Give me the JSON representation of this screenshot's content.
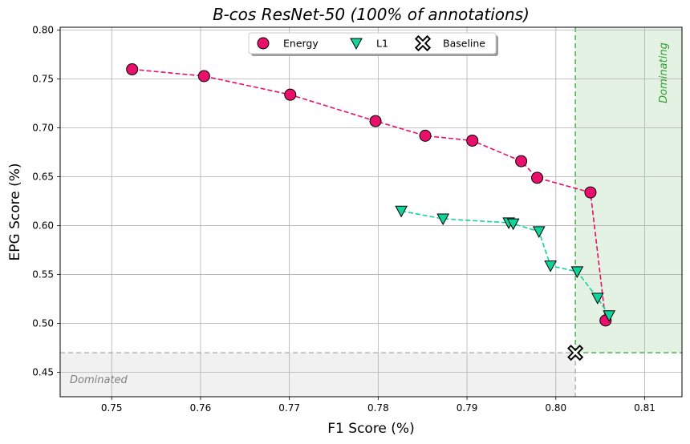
{
  "chart_data": {
    "type": "scatter",
    "title": "B-cos ResNet-50 (100% of annotations)",
    "xlabel": "F1 Score (%)",
    "ylabel": "EPG Score (%)",
    "xlim": [
      0.7442,
      0.8142
    ],
    "ylim": [
      0.425,
      0.803
    ],
    "x_ticks": [
      0.75,
      0.76,
      0.77,
      0.78,
      0.79,
      0.8,
      0.81
    ],
    "x_tick_labels": [
      "0.75",
      "0.76",
      "0.77",
      "0.78",
      "0.79",
      "0.80",
      "0.81"
    ],
    "y_ticks": [
      0.45,
      0.5,
      0.55,
      0.6,
      0.65,
      0.7,
      0.75,
      0.8
    ],
    "y_tick_labels": [
      "0.45",
      "0.50",
      "0.55",
      "0.60",
      "0.65",
      "0.70",
      "0.75",
      "0.80"
    ],
    "grid": true,
    "legend_position": "top-center",
    "series": [
      {
        "name": "Energy",
        "marker": "circle",
        "color": "#e8106a",
        "x": [
          0.7523,
          0.7604,
          0.7701,
          0.7797,
          0.7853,
          0.7906,
          0.7961,
          0.7979,
          0.8039,
          0.8056
        ],
        "y": [
          0.76,
          0.753,
          0.734,
          0.707,
          0.692,
          0.687,
          0.666,
          0.649,
          0.634,
          0.503
        ]
      },
      {
        "name": "L1",
        "marker": "triangle-down",
        "color": "#10d49a",
        "x": [
          0.7826,
          0.7873,
          0.7947,
          0.7952,
          0.7981,
          0.7994,
          0.8024,
          0.8047,
          0.806
        ],
        "y": [
          0.615,
          0.607,
          0.603,
          0.602,
          0.594,
          0.559,
          0.553,
          0.526,
          0.508
        ]
      },
      {
        "name": "Baseline",
        "marker": "thick-x",
        "color": "#000000",
        "x": [
          0.8022
        ],
        "y": [
          0.47
        ]
      }
    ],
    "regions": [
      {
        "label": "Dominating",
        "color": "#2e9e2e"
      },
      {
        "label": "Dominated",
        "color": "#808080"
      }
    ]
  }
}
